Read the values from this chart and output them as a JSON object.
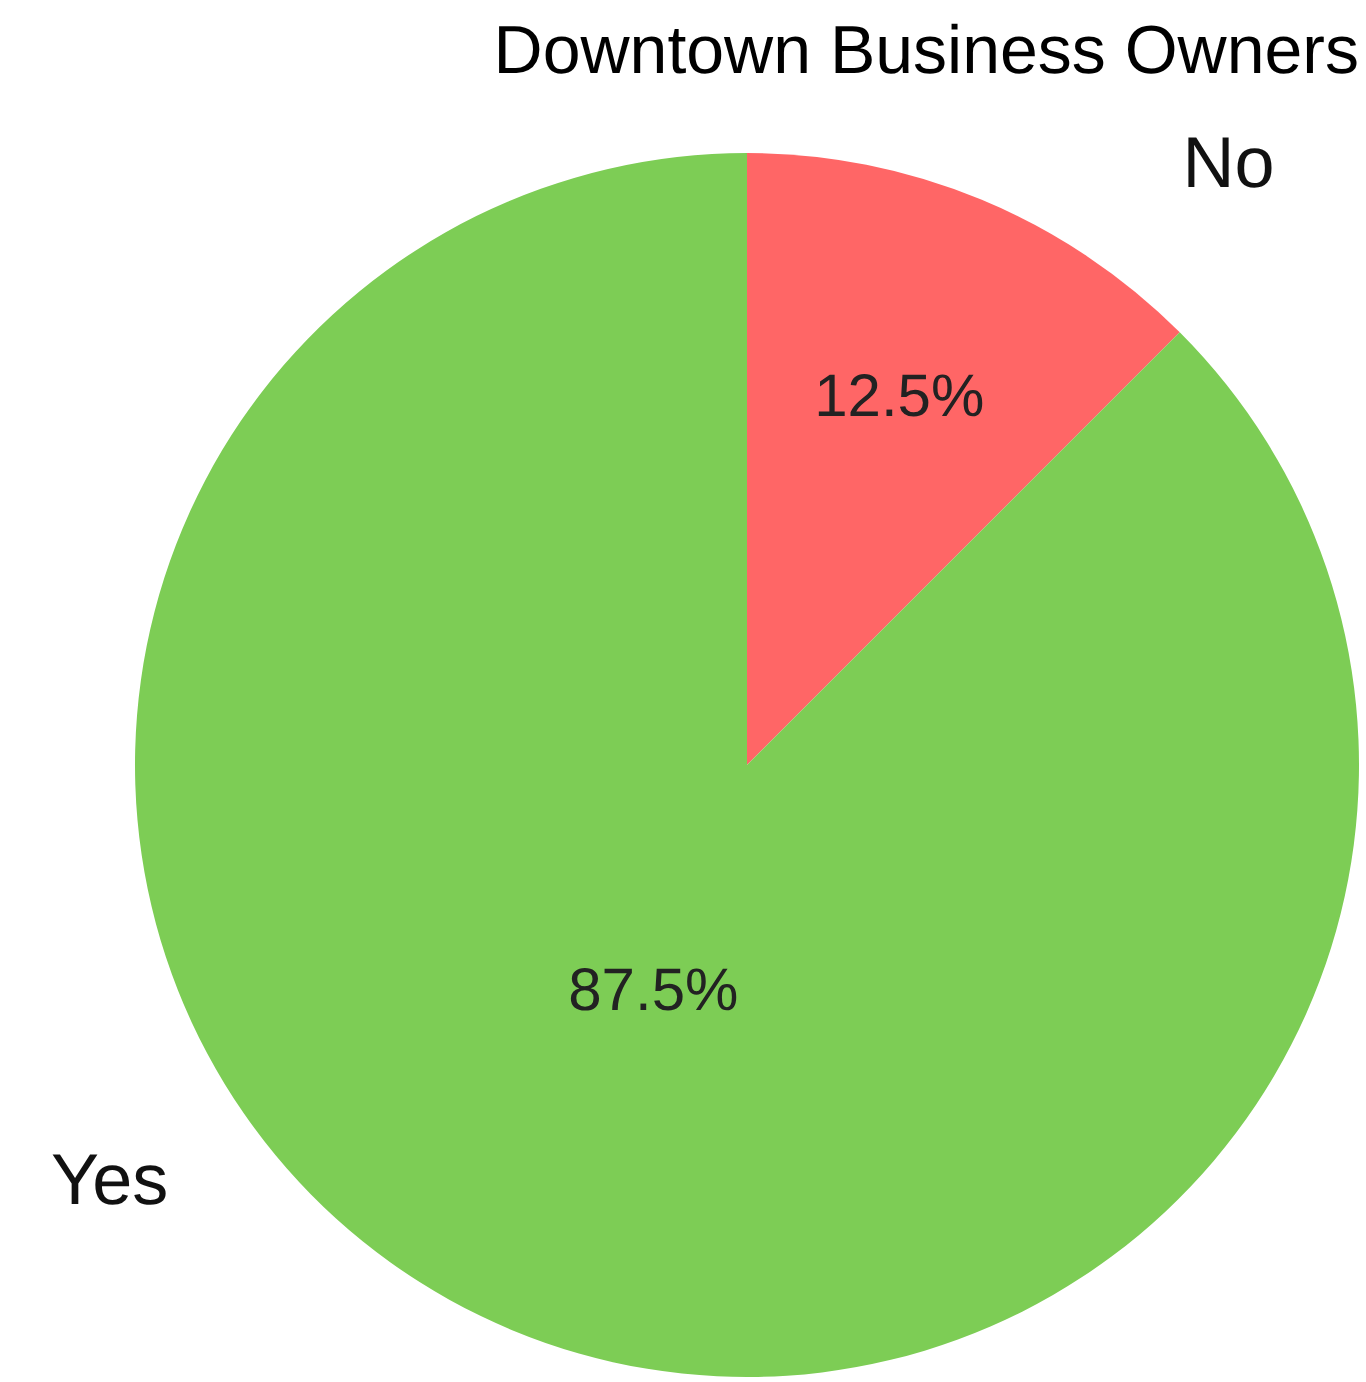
{
  "chart_data": {
    "type": "pie",
    "title": "Downtown Business Owners",
    "categories": [
      "No",
      "Yes"
    ],
    "values": [
      12.5,
      87.5
    ],
    "colors": [
      "#ff6666",
      "#7dcd55"
    ],
    "value_labels": [
      "12.5%",
      "87.5%"
    ]
  }
}
